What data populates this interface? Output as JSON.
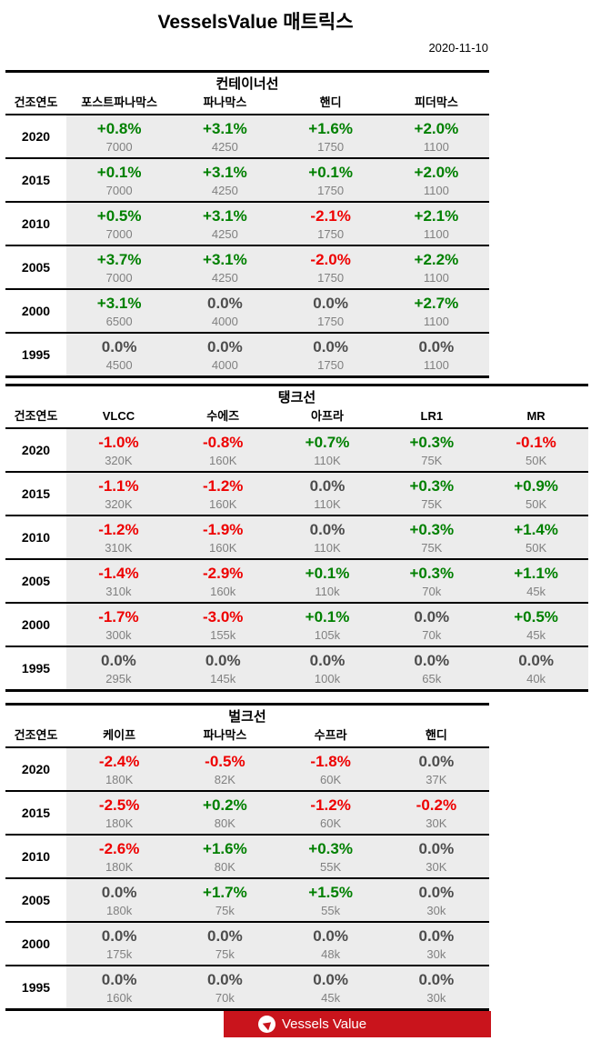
{
  "header": {
    "title": "VesselsValue 매트릭스",
    "date": "2020-11-10"
  },
  "footer": {
    "brand": "Vessels Value"
  },
  "colors": {
    "positive": "#008000",
    "negative": "#ee0000",
    "neutral": "#4d4d4d",
    "value_gray": "#808080",
    "row_shade": "#ececec",
    "banner_red": "#c9141c"
  },
  "chart_data": [
    {
      "type": "table",
      "title": "컨테이너선",
      "row_header": "건조연도",
      "wide": false,
      "columns": [
        "포스트파나막스",
        "파나막스",
        "핸디",
        "피더막스"
      ],
      "rows": [
        {
          "year": "2020",
          "cells": [
            {
              "pct": "+0.8%",
              "val": "7000"
            },
            {
              "pct": "+3.1%",
              "val": "4250"
            },
            {
              "pct": "+1.6%",
              "val": "1750"
            },
            {
              "pct": "+2.0%",
              "val": "1100"
            }
          ]
        },
        {
          "year": "2015",
          "cells": [
            {
              "pct": "+0.1%",
              "val": "7000"
            },
            {
              "pct": "+3.1%",
              "val": "4250"
            },
            {
              "pct": "+0.1%",
              "val": "1750"
            },
            {
              "pct": "+2.0%",
              "val": "1100"
            }
          ]
        },
        {
          "year": "2010",
          "cells": [
            {
              "pct": "+0.5%",
              "val": "7000"
            },
            {
              "pct": "+3.1%",
              "val": "4250"
            },
            {
              "pct": "-2.1%",
              "val": "1750"
            },
            {
              "pct": "+2.1%",
              "val": "1100"
            }
          ]
        },
        {
          "year": "2005",
          "cells": [
            {
              "pct": "+3.7%",
              "val": "7000"
            },
            {
              "pct": "+3.1%",
              "val": "4250"
            },
            {
              "pct": "-2.0%",
              "val": "1750"
            },
            {
              "pct": "+2.2%",
              "val": "1100"
            }
          ]
        },
        {
          "year": "2000",
          "cells": [
            {
              "pct": "+3.1%",
              "val": "6500"
            },
            {
              "pct": "0.0%",
              "val": "4000"
            },
            {
              "pct": "0.0%",
              "val": "1750"
            },
            {
              "pct": "+2.7%",
              "val": "1100"
            }
          ]
        },
        {
          "year": "1995",
          "cells": [
            {
              "pct": "0.0%",
              "val": "4500"
            },
            {
              "pct": "0.0%",
              "val": "4000"
            },
            {
              "pct": "0.0%",
              "val": "1750"
            },
            {
              "pct": "0.0%",
              "val": "1100"
            }
          ]
        }
      ]
    },
    {
      "type": "table",
      "title": "탱크선",
      "row_header": "건조연도",
      "wide": true,
      "columns": [
        "VLCC",
        "수에즈",
        "아프라",
        "LR1",
        "MR"
      ],
      "rows": [
        {
          "year": "2020",
          "cells": [
            {
              "pct": "-1.0%",
              "val": "320K"
            },
            {
              "pct": "-0.8%",
              "val": "160K"
            },
            {
              "pct": "+0.7%",
              "val": "110K"
            },
            {
              "pct": "+0.3%",
              "val": "75K"
            },
            {
              "pct": "-0.1%",
              "val": "50K"
            }
          ]
        },
        {
          "year": "2015",
          "cells": [
            {
              "pct": "-1.1%",
              "val": "320K"
            },
            {
              "pct": "-1.2%",
              "val": "160K"
            },
            {
              "pct": "0.0%",
              "val": "110K"
            },
            {
              "pct": "+0.3%",
              "val": "75K"
            },
            {
              "pct": "+0.9%",
              "val": "50K"
            }
          ]
        },
        {
          "year": "2010",
          "cells": [
            {
              "pct": "-1.2%",
              "val": "310K"
            },
            {
              "pct": "-1.9%",
              "val": "160K"
            },
            {
              "pct": "0.0%",
              "val": "110K"
            },
            {
              "pct": "+0.3%",
              "val": "75K"
            },
            {
              "pct": "+1.4%",
              "val": "50K"
            }
          ]
        },
        {
          "year": "2005",
          "cells": [
            {
              "pct": "-1.4%",
              "val": "310k"
            },
            {
              "pct": "-2.9%",
              "val": "160k"
            },
            {
              "pct": "+0.1%",
              "val": "110k"
            },
            {
              "pct": "+0.3%",
              "val": "70k"
            },
            {
              "pct": "+1.1%",
              "val": "45k"
            }
          ]
        },
        {
          "year": "2000",
          "cells": [
            {
              "pct": "-1.7%",
              "val": "300k"
            },
            {
              "pct": "-3.0%",
              "val": "155k"
            },
            {
              "pct": "+0.1%",
              "val": "105k"
            },
            {
              "pct": "0.0%",
              "val": "70k"
            },
            {
              "pct": "+0.5%",
              "val": "45k"
            }
          ]
        },
        {
          "year": "1995",
          "cells": [
            {
              "pct": "0.0%",
              "val": "295k"
            },
            {
              "pct": "0.0%",
              "val": "145k"
            },
            {
              "pct": "0.0%",
              "val": "100k"
            },
            {
              "pct": "0.0%",
              "val": "65k"
            },
            {
              "pct": "0.0%",
              "val": "40k"
            }
          ]
        }
      ]
    },
    {
      "type": "table",
      "title": "벌크선",
      "row_header": "건조연도",
      "wide": false,
      "columns": [
        "케이프",
        "파나막스",
        "수프라",
        "핸디"
      ],
      "rows": [
        {
          "year": "2020",
          "cells": [
            {
              "pct": "-2.4%",
              "val": "180K"
            },
            {
              "pct": "-0.5%",
              "val": "82K"
            },
            {
              "pct": "-1.8%",
              "val": "60K"
            },
            {
              "pct": "0.0%",
              "val": "37K"
            }
          ]
        },
        {
          "year": "2015",
          "cells": [
            {
              "pct": "-2.5%",
              "val": "180K"
            },
            {
              "pct": "+0.2%",
              "val": "80K"
            },
            {
              "pct": "-1.2%",
              "val": "60K"
            },
            {
              "pct": "-0.2%",
              "val": "30K"
            }
          ]
        },
        {
          "year": "2010",
          "cells": [
            {
              "pct": "-2.6%",
              "val": "180K"
            },
            {
              "pct": "+1.6%",
              "val": "80K"
            },
            {
              "pct": "+0.3%",
              "val": "55K"
            },
            {
              "pct": "0.0%",
              "val": "30K"
            }
          ]
        },
        {
          "year": "2005",
          "cells": [
            {
              "pct": "0.0%",
              "val": "180k"
            },
            {
              "pct": "+1.7%",
              "val": "75k"
            },
            {
              "pct": "+1.5%",
              "val": "55k"
            },
            {
              "pct": "0.0%",
              "val": "30k"
            }
          ]
        },
        {
          "year": "2000",
          "cells": [
            {
              "pct": "0.0%",
              "val": "175k"
            },
            {
              "pct": "0.0%",
              "val": "75k"
            },
            {
              "pct": "0.0%",
              "val": "48k"
            },
            {
              "pct": "0.0%",
              "val": "30k"
            }
          ]
        },
        {
          "year": "1995",
          "cells": [
            {
              "pct": "0.0%",
              "val": "160k"
            },
            {
              "pct": "0.0%",
              "val": "70k"
            },
            {
              "pct": "0.0%",
              "val": "45k"
            },
            {
              "pct": "0.0%",
              "val": "30k"
            }
          ]
        }
      ]
    }
  ]
}
